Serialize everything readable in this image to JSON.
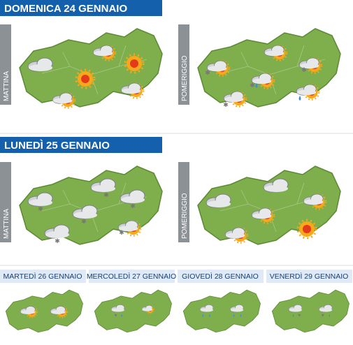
{
  "days": [
    {
      "title": "DOMENICA 24 GENNAIO",
      "panels": [
        "MATTINA",
        "POMERIGGIO"
      ]
    },
    {
      "title": "LUNEDÌ 25 GENNAIO",
      "panels": [
        "MATTINA",
        "POMERIGGIO"
      ]
    }
  ],
  "outlook": [
    "MARTEDÌ 26 GENNAIO",
    "MERCOLEDÌ 27 GENNAIO",
    "GIOVEDÌ 28 GENNAIO",
    "VENERDÌ 29 GENNAIO"
  ]
}
